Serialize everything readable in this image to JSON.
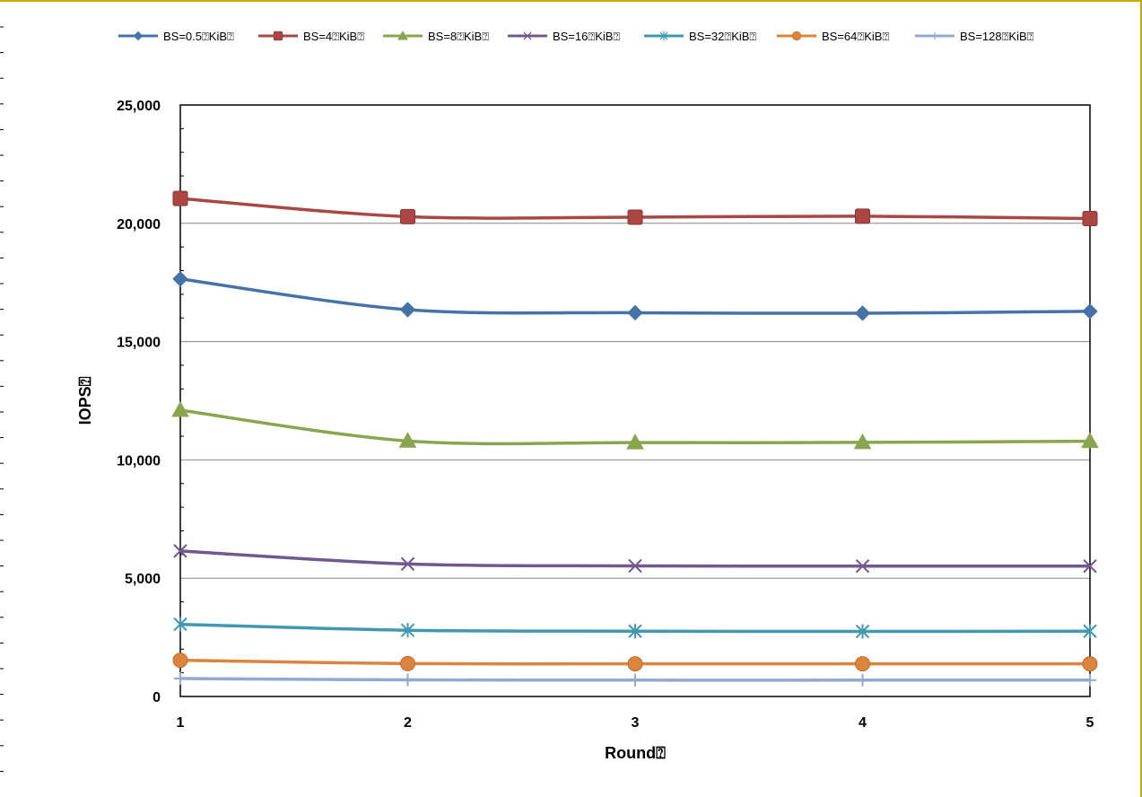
{
  "chart_data": {
    "type": "line",
    "xlabel": "Round⍰",
    "ylabel": "IOPS⍰",
    "x": [
      1,
      2,
      3,
      4,
      5
    ],
    "xlim": [
      1,
      5
    ],
    "ylim": [
      0,
      25000
    ],
    "yticks": [
      0,
      5000,
      10000,
      15000,
      20000,
      25000
    ],
    "ytick_labels": [
      "0",
      "5,000",
      "10,000",
      "15,000",
      "20,000",
      "25,000"
    ],
    "xtick_labels": [
      "1",
      "2",
      "3",
      "4",
      "5"
    ],
    "grid": "horizontal",
    "legend_position": "top",
    "series": [
      {
        "name": "BS=0.5⍰KiB⍰",
        "values": [
          17650,
          16350,
          16220,
          16200,
          16280
        ],
        "color": "#4572a7",
        "marker": "diamond"
      },
      {
        "name": "BS=4⍰KiB⍰",
        "values": [
          21050,
          20280,
          20260,
          20300,
          20200
        ],
        "color": "#aa4643",
        "marker": "square"
      },
      {
        "name": "BS=8⍰KiB⍰",
        "values": [
          12100,
          10800,
          10730,
          10740,
          10790
        ],
        "color": "#89a54e",
        "marker": "triangle"
      },
      {
        "name": "BS=16⍰KiB⍰",
        "values": [
          6150,
          5600,
          5520,
          5510,
          5510
        ],
        "color": "#71588f",
        "marker": "x"
      },
      {
        "name": "BS=32⍰KiB⍰",
        "values": [
          3050,
          2800,
          2760,
          2750,
          2760
        ],
        "color": "#4198af",
        "marker": "star"
      },
      {
        "name": "BS=64⍰KiB⍰",
        "values": [
          1530,
          1390,
          1380,
          1380,
          1380
        ],
        "color": "#db843d",
        "marker": "circle"
      },
      {
        "name": "BS=128⍰KiB⍰",
        "values": [
          760,
          700,
          690,
          690,
          690
        ],
        "color": "#93a9cf",
        "marker": "plus"
      }
    ]
  }
}
